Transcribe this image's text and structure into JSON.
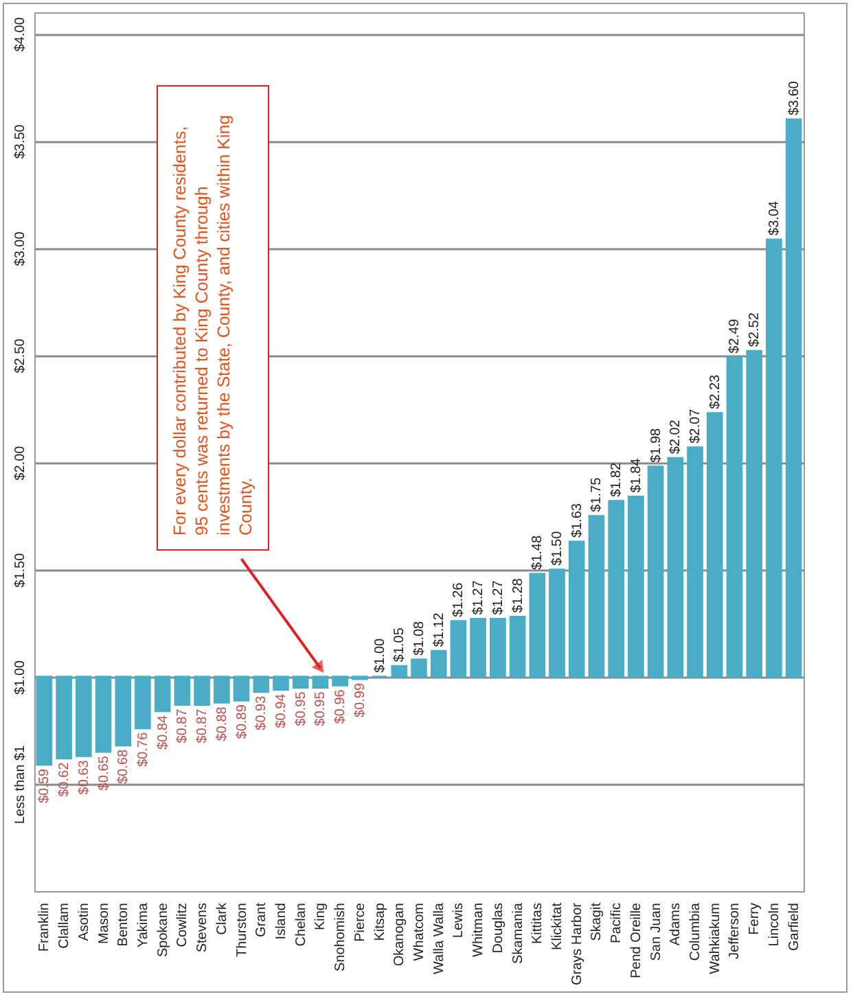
{
  "chart_data": {
    "type": "bar",
    "categories": [
      "Franklin",
      "Clallam",
      "Asotin",
      "Mason",
      "Benton",
      "Yakima",
      "Spokane",
      "Cowlitz",
      "Stevens",
      "Clark",
      "Thurston",
      "Grant",
      "Island",
      "Chelan",
      "King",
      "Snohomish",
      "Pierce",
      "Kitsap",
      "Okanogan",
      "Whatcom",
      "Walla Walla",
      "Lewis",
      "Whitman",
      "Douglas",
      "Skamania",
      "Kittitas",
      "Klickitat",
      "Grays Harbor",
      "Skagit",
      "Pacific",
      "Pend Oreille",
      "San Juan",
      "Adams",
      "Columbia",
      "Wahkiakum",
      "Jefferson",
      "Ferry",
      "Lincoln",
      "Garfield"
    ],
    "base": [
      1,
      1,
      1,
      1,
      1,
      1,
      1,
      1,
      1,
      1,
      1,
      1,
      1,
      1,
      1,
      1,
      1,
      1,
      1,
      1,
      1,
      1,
      1,
      1,
      1,
      1,
      1,
      1,
      1,
      1,
      1,
      1,
      1,
      1,
      1,
      1,
      1,
      1,
      1
    ],
    "values": [
      -0.41,
      -0.38,
      -0.37,
      -0.35,
      -0.32,
      -0.24,
      -0.16,
      -0.13,
      -0.13,
      -0.12,
      -0.11,
      -0.07,
      -0.06,
      -0.05,
      -0.05,
      -0.04,
      -0.01,
      0,
      0.05,
      0.08,
      0.12,
      0.26,
      0.27,
      0.27,
      0.28,
      0.48,
      0.5,
      0.63,
      0.75,
      0.82,
      0.84,
      0.98,
      1.02,
      1.07,
      1.23,
      1.49,
      1.52,
      2.04,
      2.6
    ],
    "value_labels": [
      "$0.59",
      "$0.62",
      "$0.63",
      "$0.65",
      "$0.68",
      "$0.76",
      "$0.84",
      "$0.87",
      "$0.87",
      "$0.88",
      "$0.89",
      "$0.93",
      "$0.94",
      "$0.95",
      "$0.95",
      "$0.96",
      "$0.99",
      "$1.00",
      "$1.05",
      "$1.08",
      "$1.12",
      "$1.26",
      "$1.27",
      "$1.27",
      "$1.28",
      "$1.48",
      "$1.50",
      "$1.63",
      "$1.75",
      "$1.82",
      "$1.84",
      "$1.98",
      "$2.02",
      "$2.07",
      "$2.23",
      "$2.49",
      "$2.52",
      "$3.04",
      "$3.60"
    ],
    "color": "#4bacc6",
    "ylim": [
      0,
      4.1
    ],
    "yticks": [
      {
        "value": 0.5,
        "label": "Less than $1"
      },
      {
        "value": 1,
        "label": "$1.00"
      },
      {
        "value": 1.5,
        "label": "$1.50"
      },
      {
        "value": 2,
        "label": "$2.00"
      },
      {
        "value": 2.5,
        "label": "$2.50"
      },
      {
        "value": 3,
        "label": "$3.00"
      },
      {
        "value": 3.5,
        "label": "$3.50"
      },
      {
        "value": 4,
        "label": "$4.00"
      }
    ],
    "grid": "y",
    "annotations": [
      "For every dollar contributed by King County residents, 95 cents was returned to King County through investments by the State, County, and cities within King County."
    ]
  }
}
